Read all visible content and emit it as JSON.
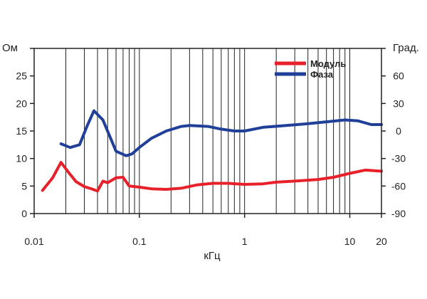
{
  "chart_data": {
    "type": "line",
    "xscale": "log",
    "xlim": [
      0.01,
      20
    ],
    "x_ticks": [
      0.01,
      0.1,
      1,
      10,
      20
    ],
    "x_tick_labels": [
      "0.01",
      "0.1",
      "1",
      "10",
      "20"
    ],
    "xlabel": "кГц",
    "ylabel_left": "Ом",
    "ylabel_right": "Град.",
    "ylim_left": [
      0,
      30
    ],
    "y_ticks_left": [
      0,
      5,
      10,
      15,
      20,
      25
    ],
    "y_tick_labels_left": [
      "0",
      "5",
      "10",
      "15",
      "20",
      "25"
    ],
    "ylim_right": [
      -90,
      90
    ],
    "y_ticks_right": [
      -90,
      -60,
      -30,
      0,
      30,
      60
    ],
    "y_tick_labels_right": [
      "-90",
      "-60",
      "-30",
      "0",
      "30",
      "60"
    ],
    "grid": "vertical",
    "legend_position": "top-right",
    "series": [
      {
        "name": "Модуль",
        "axis": "left",
        "color": "#e8202a",
        "points": [
          [
            0.012,
            4.2
          ],
          [
            0.015,
            6.5
          ],
          [
            0.018,
            9.3
          ],
          [
            0.021,
            7.6
          ],
          [
            0.025,
            5.8
          ],
          [
            0.03,
            4.9
          ],
          [
            0.035,
            4.5
          ],
          [
            0.04,
            4.1
          ],
          [
            0.045,
            5.9
          ],
          [
            0.05,
            5.6
          ],
          [
            0.06,
            6.5
          ],
          [
            0.07,
            6.6
          ],
          [
            0.08,
            5.0
          ],
          [
            0.1,
            4.8
          ],
          [
            0.13,
            4.5
          ],
          [
            0.18,
            4.4
          ],
          [
            0.25,
            4.6
          ],
          [
            0.35,
            5.2
          ],
          [
            0.5,
            5.5
          ],
          [
            0.7,
            5.5
          ],
          [
            1.0,
            5.3
          ],
          [
            1.5,
            5.4
          ],
          [
            2.0,
            5.7
          ],
          [
            3.0,
            5.9
          ],
          [
            5.0,
            6.2
          ],
          [
            7.0,
            6.6
          ],
          [
            10.0,
            7.3
          ],
          [
            14.0,
            7.9
          ],
          [
            20.0,
            7.7
          ]
        ]
      },
      {
        "name": "Фаза",
        "axis": "right",
        "color": "#1f3f99",
        "points": [
          [
            0.018,
            -14
          ],
          [
            0.022,
            -18
          ],
          [
            0.027,
            -15
          ],
          [
            0.032,
            6
          ],
          [
            0.037,
            22
          ],
          [
            0.045,
            12
          ],
          [
            0.052,
            -5
          ],
          [
            0.06,
            -22
          ],
          [
            0.075,
            -27
          ],
          [
            0.085,
            -25
          ],
          [
            0.1,
            -18
          ],
          [
            0.13,
            -8
          ],
          [
            0.18,
            0
          ],
          [
            0.25,
            5
          ],
          [
            0.3,
            6
          ],
          [
            0.45,
            5
          ],
          [
            0.6,
            2
          ],
          [
            0.8,
            0
          ],
          [
            1.0,
            0
          ],
          [
            1.5,
            4
          ],
          [
            2.5,
            6
          ],
          [
            4.0,
            8
          ],
          [
            6.0,
            10
          ],
          [
            9.0,
            12
          ],
          [
            12.0,
            11
          ],
          [
            16.0,
            7
          ],
          [
            20.0,
            7
          ]
        ]
      }
    ]
  }
}
